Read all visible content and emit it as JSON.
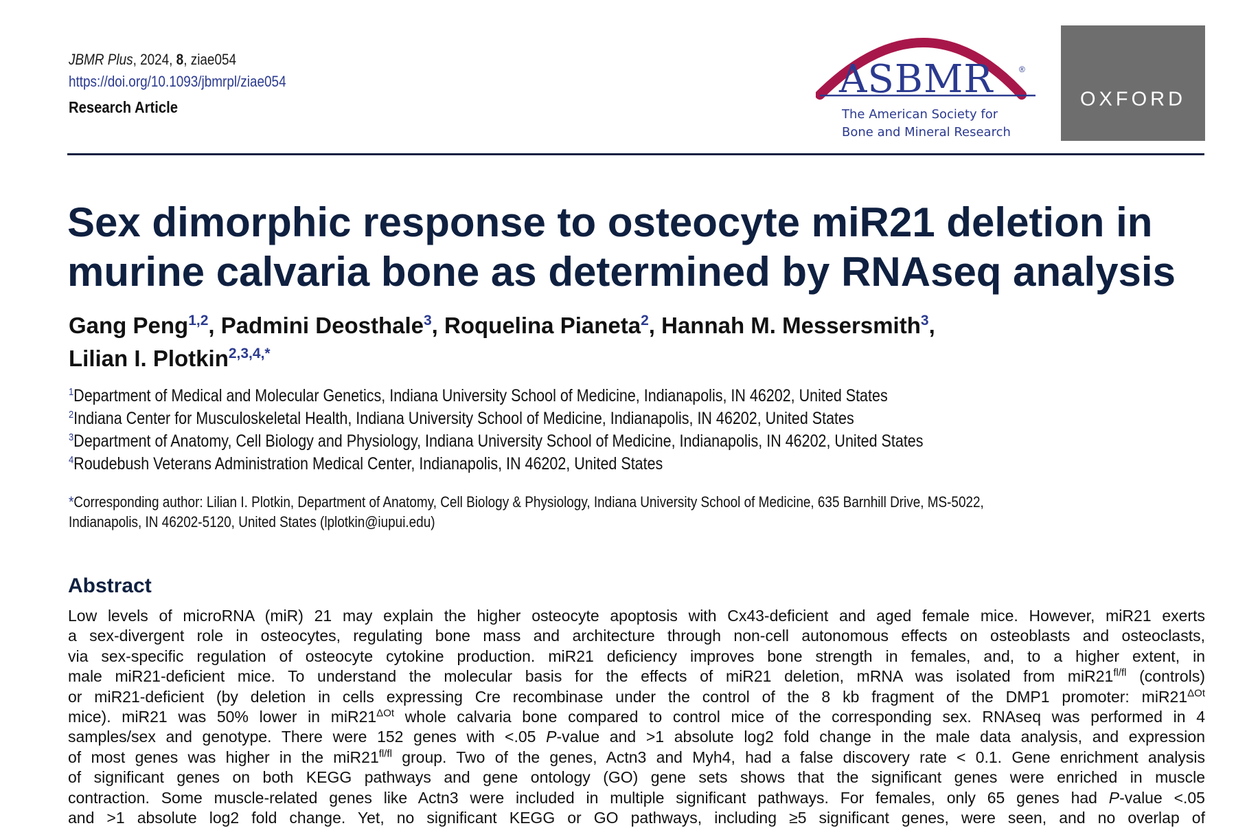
{
  "header": {
    "journal_name": "JBMR Plus",
    "journal_rest": ", 2024, ",
    "volume": "8",
    "article_id": ", ziae054",
    "doi": "https://doi.org/10.1093/jbmrpl/ziae054",
    "article_type": "Research Article"
  },
  "logos": {
    "asbmr_word": "ASBMR",
    "asbmr_registered": "®",
    "asbmr_tagline_1": "The American Society for",
    "asbmr_tagline_2": "Bone and Mineral Research",
    "oxford_word": "OXFORD",
    "colors": {
      "arc": "#a8174a",
      "navy": "#2b3a8f",
      "oxford_bg": "#6e6e6e"
    }
  },
  "title": {
    "line_1": "Sex dimorphic response to osteocyte miR21 deletion in",
    "line_2": "murine calvaria bone as determined by RNAseq analysis"
  },
  "authors": [
    {
      "name": "Gang Peng",
      "sup": "1,2",
      "sep": ", "
    },
    {
      "name": "Padmini Deosthale",
      "sup": "3",
      "sep": ", "
    },
    {
      "name": "Roquelina Pianeta",
      "sup": "2",
      "sep": ", "
    },
    {
      "name": "Hannah M. Messersmith",
      "sup": "3",
      "sep": ","
    },
    {
      "name": "Lilian I. Plotkin",
      "sup": "2,3,4,*",
      "sep": ""
    }
  ],
  "affiliations": [
    {
      "num": "1",
      "text": "Department of Medical and Molecular Genetics, Indiana University School of Medicine, Indianapolis, IN 46202, United States"
    },
    {
      "num": "2",
      "text": "Indiana Center for Musculoskeletal Health, Indiana University School of Medicine, Indianapolis, IN 46202, United States"
    },
    {
      "num": "3",
      "text": "Department of Anatomy, Cell Biology and Physiology, Indiana University School of Medicine, Indianapolis, IN 46202, United States"
    },
    {
      "num": "4",
      "text": "Roudebush Veterans Administration Medical Center, Indianapolis, IN 46202, United States"
    }
  ],
  "corresponding": {
    "star": "*",
    "line_1": "Corresponding author: Lilian I. Plotkin, Department of Anatomy, Cell Biology & Physiology, Indiana University School of Medicine, 635 Barnhill Drive, MS-5022,",
    "line_2": "Indianapolis, IN 46202-5120, United States (lplotkin@iupui.edu)"
  },
  "abstract": {
    "heading": "Abstract",
    "lines": [
      [
        {
          "t": "Low levels of microRNA (miR) 21 may explain the higher osteocyte apoptosis with Cx43-deficient and aged female mice. However, miR21 exerts"
        }
      ],
      [
        {
          "t": "a sex-divergent role in osteocytes, regulating bone mass and architecture through non-cell autonomous effects on osteoblasts and osteoclasts,"
        }
      ],
      [
        {
          "t": "via sex-specific regulation of osteocyte cytokine production. miR21 deficiency improves bone strength in females, and, to a higher extent, in"
        }
      ],
      [
        {
          "t": "male miR21-deficient mice. To understand the molecular basis for the effects of miR21 deletion, mRNA was isolated from miR21"
        },
        {
          "t": "fl/fl",
          "s": "sup"
        },
        {
          "t": " (controls)"
        }
      ],
      [
        {
          "t": "or miR21-deficient (by deletion in cells expressing Cre recombinase under the control of the 8 kb fragment of the DMP1 promoter: miR21"
        },
        {
          "t": "ΔOt",
          "s": "sup"
        }
      ],
      [
        {
          "t": "mice). miR21 was 50% lower in miR21"
        },
        {
          "t": "ΔOt",
          "s": "sup"
        },
        {
          "t": " whole calvaria bone compared to control mice of the corresponding sex. RNAseq was performed in 4"
        }
      ],
      [
        {
          "t": "samples/sex and genotype. There were 152 genes with <.05 "
        },
        {
          "t": "P",
          "s": "i"
        },
        {
          "t": "-value and >1 absolute log2 fold change in the male data analysis, and expression"
        }
      ],
      [
        {
          "t": "of most genes was higher in the miR21"
        },
        {
          "t": "fl/fl",
          "s": "sup"
        },
        {
          "t": " group. Two of the genes, Actn3 and Myh4, had a false discovery rate < 0.1. Gene enrichment analysis"
        }
      ],
      [
        {
          "t": "of significant genes on both KEGG pathways and gene ontology (GO) gene sets shows that the significant genes were enriched in muscle"
        }
      ],
      [
        {
          "t": "contraction. Some muscle-related genes like Actn3 were included in multiple significant pathways. For females, only 65 genes had "
        },
        {
          "t": "P",
          "s": "i"
        },
        {
          "t": "-value <.05"
        }
      ],
      [
        {
          "t": "and >1 absolute log2 fold change. Yet, no significant KEGG or GO pathways, including ≥5 significant genes, were seen, and no overlap of"
        }
      ]
    ]
  }
}
